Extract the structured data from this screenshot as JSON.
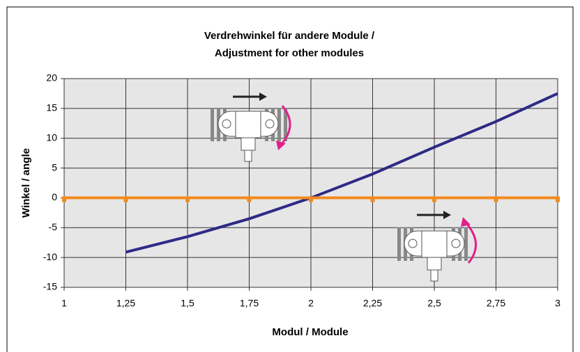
{
  "chart_data": {
    "type": "line",
    "title_lines": [
      "Verdrehwinkel für andere Module /",
      "Adjustment for other modules"
    ],
    "x_label": "Modul / Module",
    "y_label": "Winkel / angle",
    "x": [
      1,
      1.25,
      1.5,
      1.75,
      2,
      2.25,
      2.5,
      2.75,
      3
    ],
    "series": [
      {
        "color": "#2e2a86",
        "values": [
          null,
          -9.1,
          -6.5,
          -3.5,
          0,
          4.0,
          8.5,
          12.8,
          17.5
        ]
      },
      {
        "color": "#f28a1e",
        "values": [
          0,
          0,
          0,
          0,
          0,
          0,
          0,
          0,
          0
        ]
      }
    ],
    "xlim": [
      1,
      3
    ],
    "xticks": [
      1,
      {
        "value": 1.25,
        "label": "1,25"
      },
      {
        "value": 1.5,
        "label": "1,5"
      },
      {
        "value": 1.75,
        "label": "1,75"
      },
      2,
      {
        "value": 2.25,
        "label": "2,25"
      },
      {
        "value": 2.5,
        "label": "2,5"
      },
      {
        "value": 2.75,
        "label": "2,75"
      },
      3
    ],
    "ylim": [
      -15,
      20
    ],
    "yticks": [
      -15,
      -10,
      -5,
      0,
      5,
      10,
      15,
      20
    ],
    "grid": true
  }
}
